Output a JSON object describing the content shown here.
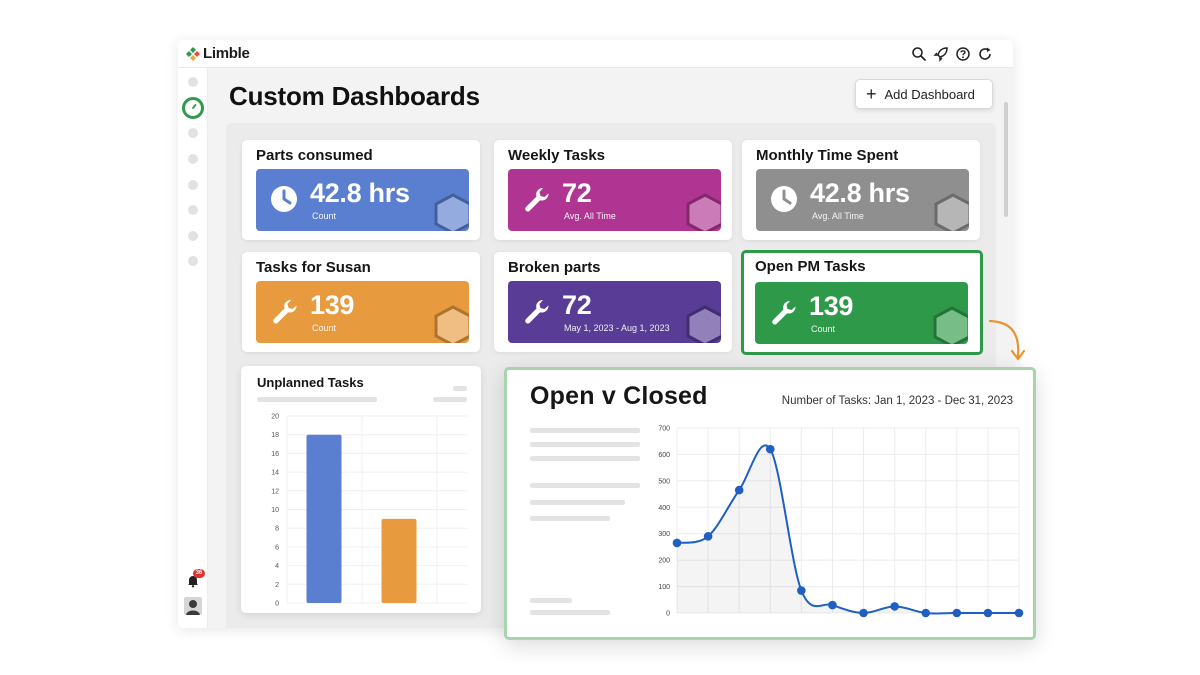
{
  "brand": {
    "name": "Limble"
  },
  "header": {
    "title": "Custom Dashboards",
    "add_button_label": "Add Dashboard"
  },
  "topbar_icons": [
    "search-icon",
    "rocket-icon",
    "help-icon",
    "refresh-icon"
  ],
  "sidebar": {
    "notification_count": "36"
  },
  "widgets": [
    {
      "title": "Parts consumed",
      "value": "42.8 hrs",
      "sub": "Count",
      "icon": "clock-icon",
      "color": "#5b7fd0"
    },
    {
      "title": "Weekly Tasks",
      "value": "72",
      "sub": "Avg. All Time",
      "icon": "wrench-icon",
      "color": "#b03592"
    },
    {
      "title": "Monthly Time Spent",
      "value": "42.8 hrs",
      "sub": "Avg. All Time",
      "icon": "clock-icon",
      "color": "#8f8f8f"
    },
    {
      "title": "Tasks for Susan",
      "value": "139",
      "sub": "Count",
      "icon": "wrench-icon",
      "color": "#e89a3f"
    },
    {
      "title": "Broken parts",
      "value": "72",
      "sub": "May 1, 2023 - Aug 1, 2023",
      "icon": "wrench-icon",
      "color": "#583c95"
    },
    {
      "title": "Open PM Tasks",
      "value": "139",
      "sub": "Count",
      "icon": "wrench-icon",
      "color": "#2e9a49"
    }
  ],
  "unplanned": {
    "title": "Unplanned Tasks",
    "chart_data": {
      "type": "bar",
      "categories": [
        "",
        ""
      ],
      "values": [
        18,
        9
      ],
      "colors": [
        "#5b7fd0",
        "#e89a3f"
      ],
      "yticks": [
        "0",
        "2",
        "4",
        "6",
        "8",
        "10",
        "12",
        "14",
        "16",
        "18",
        "20"
      ],
      "ylim": [
        0,
        20
      ]
    }
  },
  "open_closed": {
    "title": "Open v Closed",
    "subtitle": "Number of Tasks: Jan 1, 2023 - Dec 31, 2023",
    "chart_data": {
      "type": "line",
      "x": [
        1,
        2,
        3,
        4,
        5,
        6,
        7,
        8,
        9,
        10,
        11,
        12
      ],
      "values": [
        265,
        290,
        465,
        620,
        85,
        30,
        0,
        25,
        0,
        0,
        0,
        0
      ],
      "yticks": [
        "0",
        "100",
        "200",
        "300",
        "400",
        "500",
        "600",
        "700"
      ],
      "ylim": [
        0,
        700
      ],
      "color": "#1f5fc2"
    }
  }
}
